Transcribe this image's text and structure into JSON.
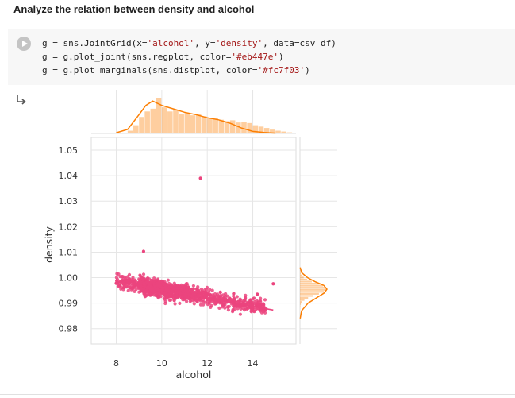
{
  "notebook": {
    "heading": "Analyze the relation between density and alcohol",
    "code_lines": [
      [
        "g = sns.JointGrid(x=",
        "'alcohol'",
        ", y=",
        "'density'",
        ", data=csv_df)"
      ],
      [
        "g = g.plot_joint(sns.regplot, color=",
        "'#eb447e'",
        ")"
      ],
      [
        "g = g.plot_marginals(sns.distplot, color=",
        "'#fc7f03'",
        ")"
      ]
    ],
    "run_icon": "play-icon",
    "output_icon": "output-arrow-icon"
  },
  "chart_data": {
    "type": "scatter",
    "xlabel": "alcohol",
    "ylabel": "density",
    "xticks": [
      8,
      10,
      12,
      14
    ],
    "yticks": [
      1.05,
      1.04,
      1.03,
      1.02,
      1.01,
      1.0,
      0.99,
      0.98
    ],
    "ytick_labels": [
      "1.05",
      "1.04",
      "1.03",
      "1.02",
      "1.01",
      "1.00",
      "0.99",
      "0.98"
    ],
    "xlim": [
      6.9,
      15.9
    ],
    "ylim": [
      0.974,
      1.055
    ],
    "grid": true,
    "colors": {
      "scatter": "#eb447e",
      "marginal": "#fc7f03"
    },
    "regression_line": {
      "x": [
        8.0,
        14.9
      ],
      "y": [
        0.9985,
        0.9873
      ]
    },
    "outliers": [
      {
        "x": 11.7,
        "y": 1.039
      },
      {
        "x": 9.2,
        "y": 1.0103
      },
      {
        "x": 14.9,
        "y": 0.9976
      },
      {
        "x": 8.0,
        "y": 0.9978
      },
      {
        "x": 14.2,
        "y": 0.9935
      }
    ],
    "cluster": {
      "x_range": [
        8.0,
        14.6
      ],
      "density_center_at_x10": 0.9955,
      "slope": -0.00162,
      "spread": 0.0026,
      "n_points": 1400
    },
    "x_hist": {
      "bin_start": 8.0,
      "bin_width": 0.25,
      "counts": [
        2,
        3,
        10,
        30,
        60,
        80,
        90,
        130,
        95,
        80,
        85,
        70,
        75,
        66,
        70,
        62,
        55,
        57,
        50,
        45,
        48,
        40,
        42,
        38,
        30,
        25,
        20,
        14,
        10,
        7,
        4,
        2
      ]
    },
    "x_kde": {
      "x": [
        8.0,
        8.5,
        9.0,
        9.3,
        9.6,
        10.0,
        10.5,
        11.0,
        11.5,
        12.0,
        12.5,
        13.0,
        13.5,
        14.0,
        14.5,
        15.0
      ],
      "y": [
        0.02,
        0.12,
        0.55,
        0.82,
        0.95,
        0.82,
        0.72,
        0.62,
        0.55,
        0.46,
        0.4,
        0.3,
        0.16,
        0.06,
        0.03,
        0.01
      ]
    },
    "y_kde": {
      "y": [
        0.984,
        0.987,
        0.99,
        0.992,
        0.994,
        0.9955,
        0.997,
        0.9985,
        1.0,
        1.002,
        1.004
      ],
      "x": [
        0.01,
        0.06,
        0.3,
        0.6,
        0.9,
        1.0,
        0.88,
        0.55,
        0.28,
        0.06,
        0.01
      ]
    }
  }
}
